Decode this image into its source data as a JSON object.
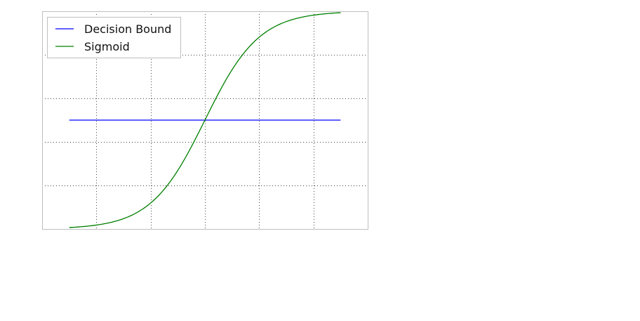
{
  "chart_data": {
    "type": "line",
    "title": "",
    "xlabel": "",
    "ylabel": "",
    "xlim": [
      -6,
      6
    ],
    "ylim": [
      0,
      1
    ],
    "x_ticks": [
      -4,
      -2,
      0,
      2,
      4
    ],
    "y_ticks": [
      0.2,
      0.4,
      0.6,
      0.8
    ],
    "grid": true,
    "grid_style": "dotted",
    "legend_position": "top-left",
    "series": [
      {
        "name": "Decision Bound",
        "color": "#0000ff",
        "x": [
          -5,
          5
        ],
        "y": [
          0.5,
          0.5
        ]
      },
      {
        "name": "Sigmoid",
        "color": "#008000",
        "function": "sigmoid",
        "x_range": [
          -5,
          5
        ]
      }
    ]
  }
}
